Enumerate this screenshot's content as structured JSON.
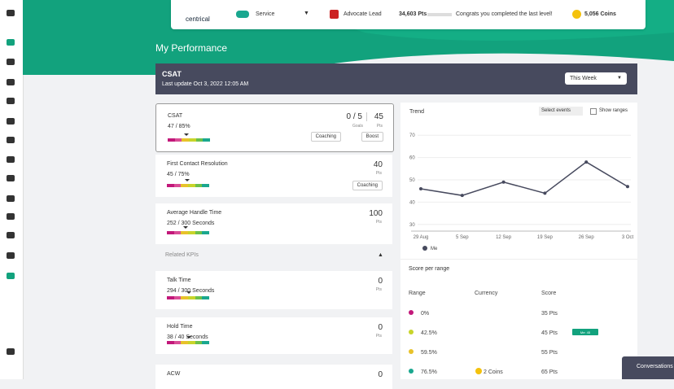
{
  "topbar": {
    "logo": "centrical",
    "team": "Service",
    "role": "Advocate Lead",
    "points": "34,603 Pts",
    "message": "Congrats you completed the last level!",
    "coins": "5,056 Coins"
  },
  "header": {
    "title": "My Performance"
  },
  "kpi_banner": {
    "title": "CSAT",
    "updated": "Last update Oct 3, 2022 12:05 AM",
    "period": "This Week"
  },
  "kpis": [
    {
      "name": "CSAT",
      "value": "47 / 85%",
      "goals": "0 / 5",
      "goals_label": "Goals",
      "points": "45",
      "points_label": "Pts",
      "actions": [
        "Coaching",
        "Boost"
      ]
    },
    {
      "name": "First Contact Resolution",
      "value": "45 / 75%",
      "points": "40",
      "points_label": "Pts",
      "actions": [
        "Coaching"
      ]
    },
    {
      "name": "Average Handle Time",
      "value": "252 / 300 Seconds",
      "points": "100",
      "points_label": "Pts"
    }
  ],
  "related_label": "Related KPIs",
  "related_kpis": [
    {
      "name": "Talk Time",
      "value": "294 / 300 Seconds",
      "points": "0",
      "points_label": "Pts"
    },
    {
      "name": "Hold Time",
      "value": "38 / 40 Seconds",
      "points": "0",
      "points_label": "Pts"
    },
    {
      "name": "ACW",
      "points": "0"
    }
  ],
  "trend": {
    "title": "Trend",
    "events": "Select events",
    "ranges": "Show ranges",
    "type": "line",
    "x": [
      "29 Aug",
      "5 Sep",
      "12 Sep",
      "19 Sep",
      "26 Sep",
      "3 Oct"
    ],
    "series": [
      {
        "name": "Me",
        "color": "#474a5e",
        "values": [
          46,
          43,
          49,
          44,
          58,
          47
        ]
      }
    ],
    "ylim": [
      27,
      73
    ],
    "yticks": [
      30,
      40,
      50,
      60,
      70
    ]
  },
  "score_table": {
    "title": "Score per range",
    "columns": [
      "Range",
      "Currency",
      "Score"
    ],
    "rows": [
      {
        "range": "0%",
        "score": "35 Pts",
        "color": "#c2187a"
      },
      {
        "range": "42.5%",
        "score": "45 Pts",
        "badge": "Me: 45",
        "color": "#c8d42a"
      },
      {
        "range": "59.5%",
        "score": "55 Pts",
        "color": "#e8c22a"
      },
      {
        "range": "76.5%",
        "currency": "2 Coins",
        "score": "65 Pts",
        "color": "#1aa78f"
      }
    ]
  },
  "chat": "Conversations"
}
